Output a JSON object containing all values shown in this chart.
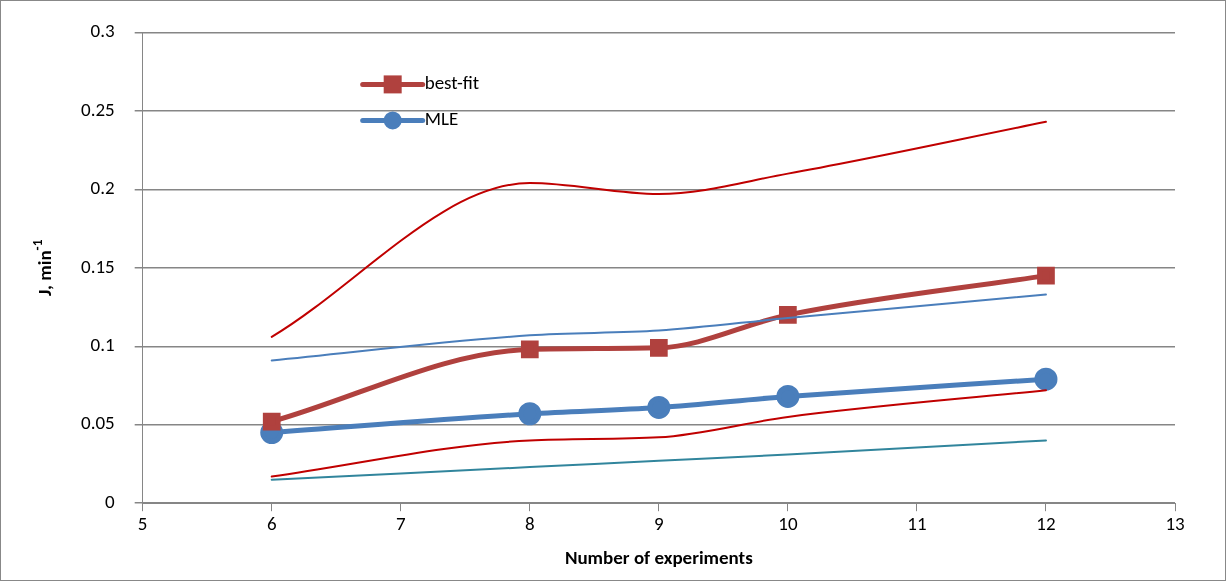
{
  "chart_data": {
    "type": "line",
    "xlabel": "Number of experiments",
    "ylabel": "J, min$^{-1}$",
    "x": [
      6,
      8,
      9,
      10,
      12
    ],
    "series": [
      {
        "name": "best-fit",
        "color": "#b0413e",
        "values": [
          0.052,
          0.098,
          0.099,
          0.12,
          0.145
        ],
        "marker": "square"
      },
      {
        "name": "MLE",
        "color": "#4a7ebb",
        "values": [
          0.045,
          0.057,
          0.061,
          0.068,
          0.079
        ],
        "marker": "circle"
      },
      {
        "color": "#c00000",
        "values": [
          0.106,
          0.204,
          0.197,
          0.21,
          0.243
        ],
        "marker": "none"
      },
      {
        "color": "#4a7ebb",
        "values": [
          0.091,
          0.107,
          0.11,
          0.118,
          0.133
        ],
        "marker": "none"
      },
      {
        "color": "#c00000",
        "values": [
          0.017,
          0.04,
          0.042,
          0.055,
          0.072
        ],
        "marker": "none"
      },
      {
        "color": "#31859c",
        "values": [
          0.015,
          0.023,
          0.027,
          0.031,
          0.04
        ],
        "marker": "none"
      }
    ],
    "xlim": [
      5,
      13
    ],
    "xticks": [
      5,
      6,
      7,
      8,
      9,
      10,
      11,
      12,
      13
    ],
    "ylim": [
      0,
      0.3
    ],
    "yticks": [
      0,
      0.05,
      0.1,
      0.15,
      0.2,
      0.25,
      0.3
    ],
    "grid": "y",
    "legend": "top left",
    "line_style": "solid"
  }
}
